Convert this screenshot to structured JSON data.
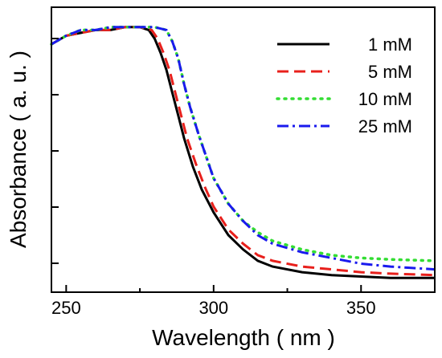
{
  "chart_data": {
    "type": "line",
    "title": "",
    "xlabel": "Wavelength ( nm )",
    "ylabel": "Absorbance ( a. u. )",
    "xlim": [
      245,
      375
    ],
    "ylim": [
      0,
      1.0
    ],
    "x_ticks": [
      250,
      300,
      350
    ],
    "x_tick_labels": [
      "250",
      "300",
      "350"
    ],
    "y_tick_labels_shown": false,
    "grid": false,
    "legend_position": "top-right",
    "series": [
      {
        "name": "1 mM",
        "color": "#000000",
        "dash": "solid",
        "x": [
          245,
          250,
          255,
          260,
          265,
          270,
          275,
          278,
          280,
          282,
          284,
          286,
          288,
          290,
          293,
          296,
          300,
          305,
          310,
          315,
          320,
          330,
          340,
          350,
          360,
          375
        ],
        "y": [
          0.87,
          0.9,
          0.91,
          0.92,
          0.92,
          0.93,
          0.93,
          0.92,
          0.89,
          0.84,
          0.78,
          0.7,
          0.62,
          0.54,
          0.44,
          0.36,
          0.28,
          0.2,
          0.15,
          0.11,
          0.09,
          0.07,
          0.06,
          0.055,
          0.05,
          0.05
        ]
      },
      {
        "name": "5 mM",
        "color": "#e8201c",
        "dash": "dashed",
        "x": [
          245,
          250,
          255,
          260,
          265,
          270,
          275,
          279,
          281,
          283,
          285,
          287,
          289,
          291,
          294,
          297,
          300,
          305,
          310,
          315,
          320,
          330,
          340,
          350,
          360,
          375
        ],
        "y": [
          0.87,
          0.9,
          0.91,
          0.92,
          0.92,
          0.93,
          0.93,
          0.92,
          0.89,
          0.84,
          0.78,
          0.7,
          0.62,
          0.54,
          0.45,
          0.37,
          0.3,
          0.22,
          0.17,
          0.13,
          0.11,
          0.09,
          0.08,
          0.07,
          0.065,
          0.06
        ]
      },
      {
        "name": "10 mM",
        "color": "#33dd33",
        "dash": "dotted",
        "x": [
          245,
          250,
          255,
          260,
          265,
          270,
          275,
          280,
          284,
          286,
          288,
          290,
          292,
          295,
          298,
          300,
          305,
          310,
          315,
          320,
          330,
          340,
          350,
          360,
          375
        ],
        "y": [
          0.87,
          0.9,
          0.92,
          0.92,
          0.93,
          0.93,
          0.93,
          0.93,
          0.92,
          0.88,
          0.82,
          0.73,
          0.65,
          0.55,
          0.46,
          0.4,
          0.31,
          0.25,
          0.21,
          0.18,
          0.15,
          0.13,
          0.12,
          0.115,
          0.11
        ]
      },
      {
        "name": "25 mM",
        "color": "#1a1aee",
        "dash": "dash-dot",
        "x": [
          245,
          250,
          255,
          260,
          265,
          270,
          275,
          280,
          284,
          286,
          288,
          290,
          292,
          295,
          298,
          300,
          305,
          310,
          315,
          320,
          330,
          340,
          350,
          360,
          375
        ],
        "y": [
          0.87,
          0.9,
          0.92,
          0.92,
          0.93,
          0.93,
          0.93,
          0.93,
          0.92,
          0.88,
          0.82,
          0.73,
          0.65,
          0.55,
          0.46,
          0.4,
          0.31,
          0.25,
          0.2,
          0.17,
          0.14,
          0.12,
          0.1,
          0.09,
          0.08
        ]
      }
    ]
  }
}
